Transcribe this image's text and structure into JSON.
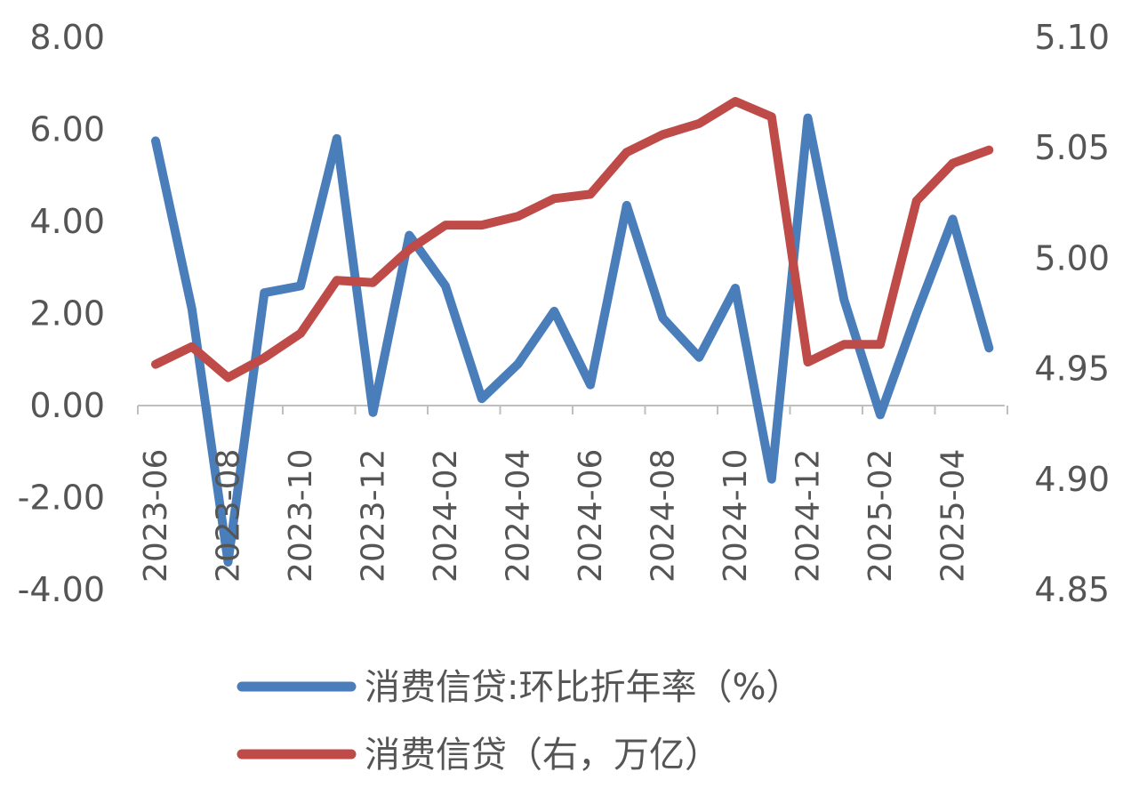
{
  "chart_data": {
    "type": "line",
    "x": [
      "2023-06",
      "2023-07",
      "2023-08",
      "2023-09",
      "2023-10",
      "2023-11",
      "2023-12",
      "2024-01",
      "2024-02",
      "2024-03",
      "2024-04",
      "2024-05",
      "2024-06",
      "2024-07",
      "2024-08",
      "2024-09",
      "2024-10",
      "2024-11",
      "2024-12",
      "2025-01",
      "2025-02",
      "2025-03",
      "2025-04",
      "2025-05"
    ],
    "tick_labels": [
      "2023-06",
      "2023-08",
      "2023-10",
      "2023-12",
      "2024-02",
      "2024-04",
      "2024-06",
      "2024-08",
      "2024-10",
      "2024-12",
      "2025-02",
      "2025-04"
    ],
    "left_axis": {
      "ylim": [
        -4,
        8
      ],
      "ticks": [
        "-4.00",
        "-2.00",
        "0.00",
        "2.00",
        "4.00",
        "6.00",
        "8.00"
      ]
    },
    "right_axis": {
      "ylim": [
        4.85,
        5.1
      ],
      "ticks": [
        "4.85",
        "4.90",
        "4.95",
        "5.00",
        "5.05",
        "5.10"
      ]
    },
    "series": [
      {
        "name": "消费信贷:环比折年率（%）",
        "axis": "left",
        "color": "#4a7ebb",
        "values": [
          5.75,
          2.1,
          -3.4,
          2.45,
          2.6,
          5.8,
          -0.15,
          3.7,
          2.6,
          0.15,
          0.9,
          2.05,
          0.45,
          4.35,
          1.9,
          1.05,
          2.55,
          -1.6,
          6.25,
          2.3,
          -0.2,
          2.0,
          4.05,
          1.25
        ]
      },
      {
        "name": "消费信贷（右，万亿）",
        "axis": "right",
        "color": "#be4b48",
        "values": [
          4.952,
          4.96,
          4.946,
          4.955,
          4.966,
          4.99,
          4.989,
          5.004,
          5.015,
          5.015,
          5.019,
          5.027,
          5.029,
          5.048,
          5.056,
          5.061,
          5.071,
          5.064,
          4.953,
          4.961,
          4.961,
          5.026,
          5.043,
          5.049
        ]
      }
    ],
    "legend_position": "bottom",
    "grid": false
  }
}
